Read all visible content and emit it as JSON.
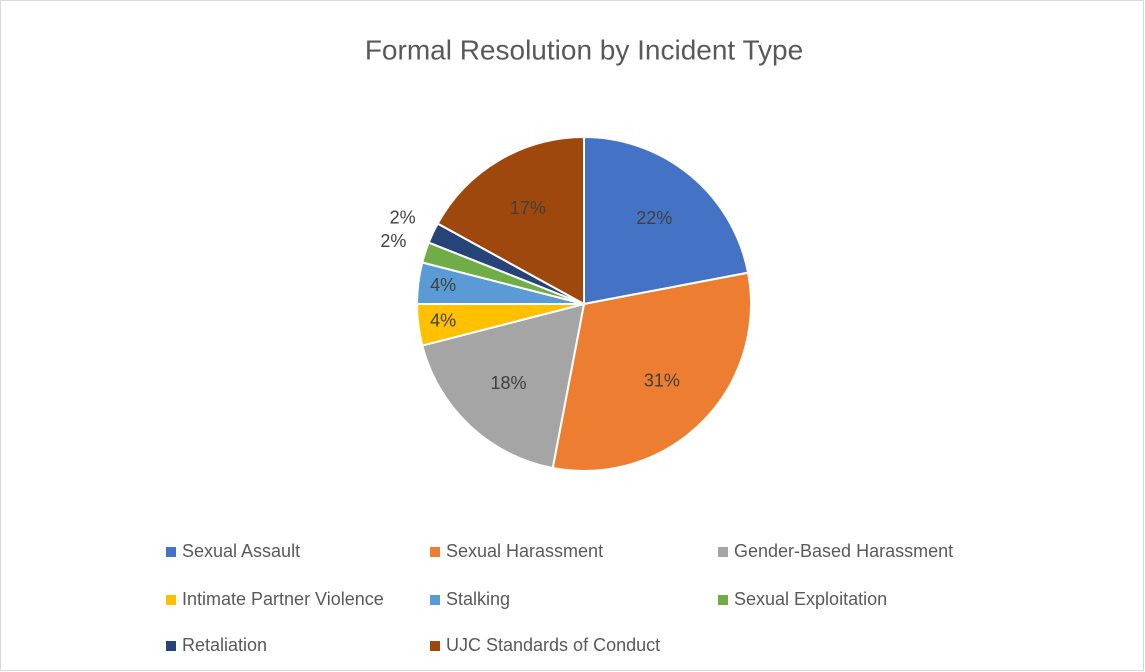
{
  "chart_data": {
    "type": "pie",
    "title": "Formal Resolution by Incident Type",
    "categories": [
      "Sexual Assault",
      "Sexual Harassment",
      "Gender-Based Harassment",
      "Intimate Partner Violence",
      "Stalking",
      "Sexual Exploitation",
      "Retaliation",
      "UJC Standards of Conduct"
    ],
    "values": [
      22,
      31,
      18,
      4,
      4,
      2,
      2,
      17
    ],
    "value_labels": [
      "22%",
      "31%",
      "18%",
      "4%",
      "4%",
      "2%",
      "2%",
      "17%"
    ],
    "colors": [
      "#4472c4",
      "#ed7d31",
      "#a5a5a5",
      "#ffc000",
      "#5b9bd5",
      "#70ad47",
      "#264478",
      "#9e480e"
    ],
    "legend": "bottom"
  }
}
